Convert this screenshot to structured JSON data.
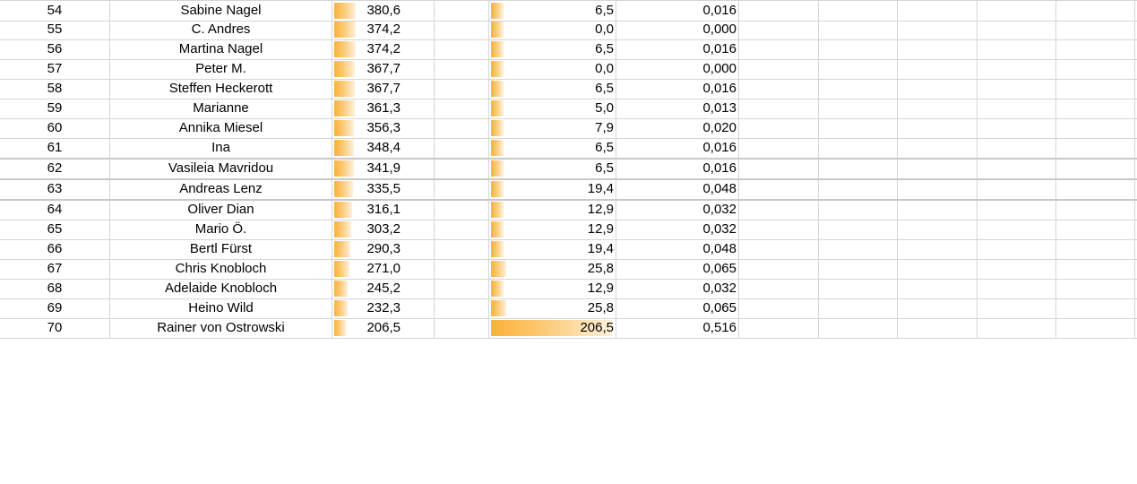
{
  "colors": {
    "bar_start": "#FBB13A",
    "bar_end": "#FEF1DC",
    "gridline": "#D4D4D4"
  },
  "scales": {
    "score_max": 380.6,
    "value_max": 206.5
  },
  "rows": [
    {
      "rank": "54",
      "name": "Sabine Nagel",
      "score": "380,6",
      "value": "6,5",
      "ratio": "0,016",
      "score_num": 380.6,
      "value_num": 6.5
    },
    {
      "rank": "55",
      "name": "C. Andres",
      "score": "374,2",
      "value": "0,0",
      "ratio": "0,000",
      "score_num": 374.2,
      "value_num": 0.0
    },
    {
      "rank": "56",
      "name": "Martina Nagel",
      "score": "374,2",
      "value": "6,5",
      "ratio": "0,016",
      "score_num": 374.2,
      "value_num": 6.5
    },
    {
      "rank": "57",
      "name": "Peter M.",
      "score": "367,7",
      "value": "0,0",
      "ratio": "0,000",
      "score_num": 367.7,
      "value_num": 0.0
    },
    {
      "rank": "58",
      "name": "Steffen Heckerott",
      "score": "367,7",
      "value": "6,5",
      "ratio": "0,016",
      "score_num": 367.7,
      "value_num": 6.5
    },
    {
      "rank": "59",
      "name": "Marianne",
      "score": "361,3",
      "value": "5,0",
      "ratio": "0,013",
      "score_num": 361.3,
      "value_num": 5.0
    },
    {
      "rank": "60",
      "name": "Annika Miesel",
      "score": "356,3",
      "value": "7,9",
      "ratio": "0,020",
      "score_num": 356.3,
      "value_num": 7.9
    },
    {
      "rank": "61",
      "name": "Ina",
      "score": "348,4",
      "value": "6,5",
      "ratio": "0,016",
      "score_num": 348.4,
      "value_num": 6.5
    },
    {
      "rank": "62",
      "name": "Vasileia Mavridou",
      "score": "341,9",
      "value": "6,5",
      "ratio": "0,016",
      "score_num": 341.9,
      "value_num": 6.5
    },
    {
      "rank": "63",
      "name": "Andreas Lenz",
      "score": "335,5",
      "value": "19,4",
      "ratio": "0,048",
      "score_num": 335.5,
      "value_num": 19.4
    },
    {
      "rank": "64",
      "name": "Oliver Dian",
      "score": "316,1",
      "value": "12,9",
      "ratio": "0,032",
      "score_num": 316.1,
      "value_num": 12.9
    },
    {
      "rank": "65",
      "name": "Mario Ö.",
      "score": "303,2",
      "value": "12,9",
      "ratio": "0,032",
      "score_num": 303.2,
      "value_num": 12.9
    },
    {
      "rank": "66",
      "name": "Bertl Fürst",
      "score": "290,3",
      "value": "19,4",
      "ratio": "0,048",
      "score_num": 290.3,
      "value_num": 19.4
    },
    {
      "rank": "67",
      "name": "Chris Knobloch",
      "score": "271,0",
      "value": "25,8",
      "ratio": "0,065",
      "score_num": 271.0,
      "value_num": 25.8
    },
    {
      "rank": "68",
      "name": "Adelaide Knobloch",
      "score": "245,2",
      "value": "12,9",
      "ratio": "0,032",
      "score_num": 245.2,
      "value_num": 12.9
    },
    {
      "rank": "69",
      "name": "Heino Wild",
      "score": "232,3",
      "value": "25,8",
      "ratio": "0,065",
      "score_num": 232.3,
      "value_num": 25.8
    },
    {
      "rank": "70",
      "name": "Rainer von Ostrowski",
      "score": "206,5",
      "value": "206,5",
      "ratio": "0,516",
      "score_num": 206.5,
      "value_num": 206.5
    }
  ]
}
